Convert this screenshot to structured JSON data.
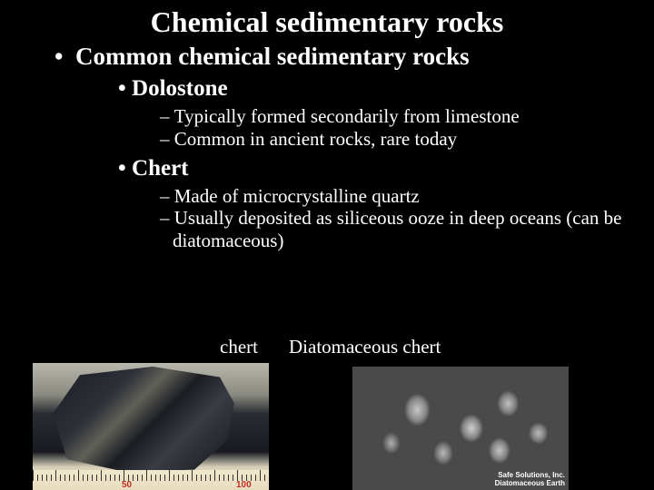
{
  "title": "Chemical sedimentary rocks",
  "level1": "Common chemical sedimentary rocks",
  "dolostone": {
    "heading": "Dolostone",
    "point1": "Typically formed secondarily from limestone",
    "point2": "Common in ancient rocks, rare today"
  },
  "chert": {
    "heading": "Chert",
    "point1": "Made of microcrystalline quartz",
    "point2": "Usually deposited as siliceous ooze in deep oceans (can be diatomaceous)"
  },
  "captions": {
    "chert": "chert",
    "diatom": "Diatomaceous chert"
  },
  "ruler": {
    "mark1": "50",
    "mark2": "100"
  },
  "credit": {
    "line1": "Safe Solutions, Inc.",
    "line2": "Diatomaceous Earth"
  },
  "colors": {
    "background": "#000000",
    "text": "#ffffff",
    "ruler_num": "#c03020"
  },
  "bullets": {
    "l1": "•",
    "l2": "•",
    "l3": "–"
  }
}
